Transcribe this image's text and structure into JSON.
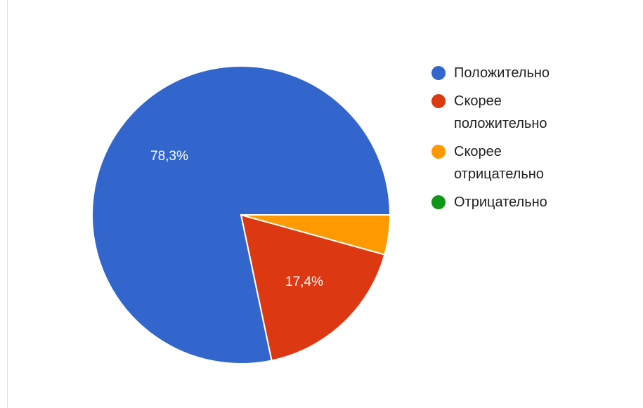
{
  "chart_data": {
    "type": "pie",
    "title": "",
    "series": [
      {
        "categories": [
          "Положительно",
          "Скорее положительно",
          "Скорее отрицательно",
          "Отрицательно"
        ],
        "values": [
          78.3,
          17.4,
          4.3,
          0.0
        ],
        "colors": [
          "#3366cc",
          "#dc3912",
          "#ff9900",
          "#109618"
        ],
        "labels": [
          "78,3%",
          "17,4%",
          "",
          ""
        ]
      }
    ],
    "legend": "right"
  }
}
